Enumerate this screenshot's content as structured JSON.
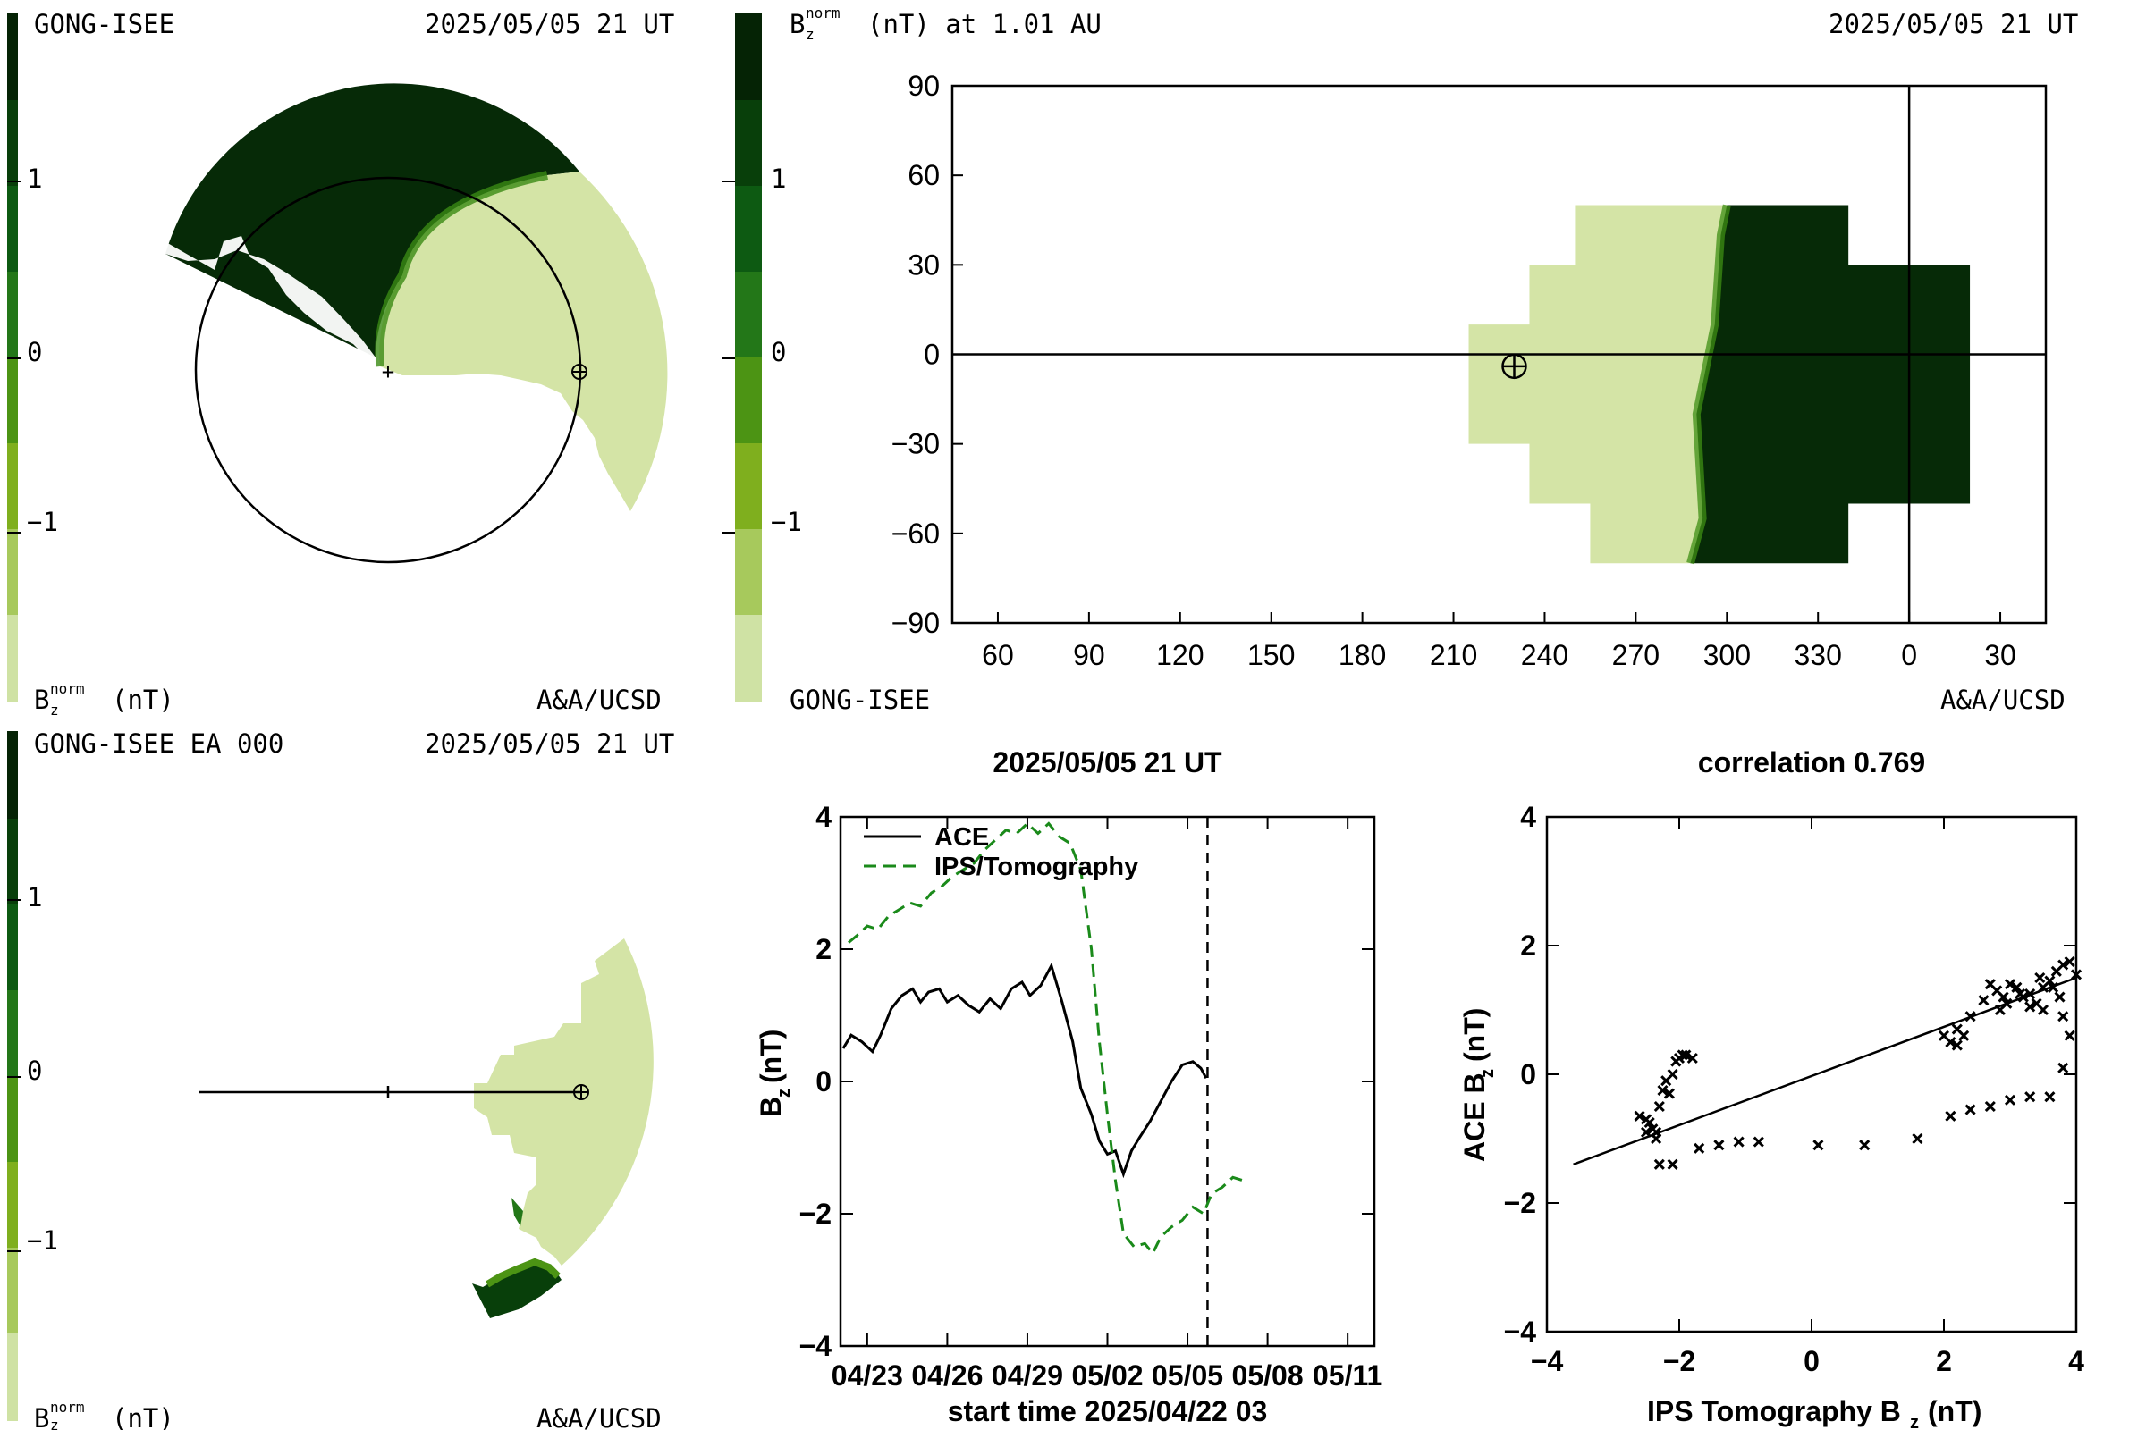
{
  "colors": {
    "scale": [
      "#cfe2a4",
      "#a7c95c",
      "#7faf1e",
      "#4c9414",
      "#237718",
      "#0d5a12",
      "#083f0a",
      "#052305"
    ],
    "light_fill": "#d4e4a6",
    "dark_fill": "#062a07",
    "ace_line": "#000000",
    "ips_line": "#1a8a1a"
  },
  "panels": {
    "top_left": {
      "source": "GONG-ISEE",
      "timestamp": "2025/05/05 21 UT",
      "colorbar_ticks": [
        "1",
        "0",
        "−1"
      ],
      "colorbar_label": "B",
      "colorbar_label_sub": "z",
      "colorbar_label_sup": "norm",
      "colorbar_unit": "(nT)",
      "credit": "A&A/UCSD"
    },
    "top_right": {
      "title": "B",
      "title_sub": "z",
      "title_sup": "norm",
      "title_tail": "(nT) at 1.01 AU",
      "timestamp": "2025/05/05 21 UT",
      "colorbar_ticks": [
        "1",
        "0",
        "−1"
      ],
      "source": "GONG-ISEE",
      "credit": "A&A/UCSD"
    },
    "bottom_left": {
      "source": "GONG-ISEE EA 000",
      "timestamp": "2025/05/05 21 UT",
      "colorbar_ticks": [
        "1",
        "0",
        "−1"
      ],
      "colorbar_label": "B",
      "colorbar_label_sub": "z",
      "colorbar_label_sup": "norm",
      "colorbar_unit": "(nT)",
      "credit": "A&A/UCSD"
    }
  },
  "chart_data": [
    {
      "type": "heatmap",
      "name": "synoptic-map",
      "xticks": [
        "60",
        "90",
        "120",
        "150",
        "180",
        "210",
        "240",
        "270",
        "300",
        "330",
        "0",
        "30"
      ],
      "yticks": [
        "90",
        "60",
        "30",
        "0",
        "−30",
        "−60",
        "−90"
      ],
      "xlim": [
        45,
        405
      ],
      "ylim": [
        -90,
        90
      ],
      "earth": {
        "x": 230,
        "y": -4
      },
      "regions": {
        "light": [
          [
            215,
            10
          ],
          [
            215,
            -30
          ],
          [
            235,
            -30
          ],
          [
            235,
            -50
          ],
          [
            255,
            -50
          ],
          [
            255,
            -70
          ],
          [
            288,
            -70
          ],
          [
            292,
            -55
          ],
          [
            290,
            -20
          ],
          [
            296,
            10
          ],
          [
            298,
            40
          ],
          [
            300,
            50
          ],
          [
            250,
            50
          ],
          [
            250,
            30
          ],
          [
            235,
            30
          ],
          [
            235,
            10
          ]
        ],
        "dark": [
          [
            300,
            50
          ],
          [
            298,
            40
          ],
          [
            296,
            10
          ],
          [
            290,
            -20
          ],
          [
            292,
            -55
          ],
          [
            288,
            -70
          ],
          [
            340,
            -70
          ],
          [
            340,
            -50
          ],
          [
            380,
            -50
          ],
          [
            380,
            30
          ],
          [
            340,
            30
          ],
          [
            340,
            50
          ]
        ]
      }
    },
    {
      "type": "line",
      "name": "time-series",
      "title": "2025/05/05 21 UT",
      "xlabel": "start time 2025/04/22 03",
      "ylabel": "B",
      "ylabel_sub": "z",
      "ylabel_unit": "(nT)",
      "xticks": [
        "04/23",
        "04/26",
        "04/29",
        "05/02",
        "05/05",
        "05/08",
        "05/11"
      ],
      "xtick_days": [
        1,
        4,
        7,
        10,
        13,
        16,
        19
      ],
      "yticks": [
        "4",
        "2",
        "0",
        "−2",
        "−4"
      ],
      "xlim": [
        0,
        20
      ],
      "ylim": [
        -4,
        4
      ],
      "current_day": 13.75,
      "series": [
        {
          "name": "ACE",
          "style": "solid",
          "points": [
            [
              0.1,
              0.5
            ],
            [
              0.4,
              0.7
            ],
            [
              0.8,
              0.6
            ],
            [
              1.2,
              0.45
            ],
            [
              1.5,
              0.7
            ],
            [
              1.9,
              1.1
            ],
            [
              2.3,
              1.3
            ],
            [
              2.7,
              1.4
            ],
            [
              3.0,
              1.2
            ],
            [
              3.3,
              1.35
            ],
            [
              3.7,
              1.4
            ],
            [
              4.0,
              1.2
            ],
            [
              4.4,
              1.3
            ],
            [
              4.8,
              1.15
            ],
            [
              5.2,
              1.05
            ],
            [
              5.6,
              1.25
            ],
            [
              6.0,
              1.1
            ],
            [
              6.4,
              1.4
            ],
            [
              6.8,
              1.5
            ],
            [
              7.1,
              1.3
            ],
            [
              7.5,
              1.45
            ],
            [
              7.9,
              1.75
            ],
            [
              8.3,
              1.2
            ],
            [
              8.7,
              0.6
            ],
            [
              9.0,
              -0.1
            ],
            [
              9.4,
              -0.5
            ],
            [
              9.7,
              -0.9
            ],
            [
              10.0,
              -1.1
            ],
            [
              10.3,
              -1.05
            ],
            [
              10.6,
              -1.4
            ],
            [
              10.9,
              -1.05
            ],
            [
              11.2,
              -0.85
            ],
            [
              11.6,
              -0.6
            ],
            [
              12.0,
              -0.3
            ],
            [
              12.4,
              0.0
            ],
            [
              12.8,
              0.25
            ],
            [
              13.2,
              0.3
            ],
            [
              13.5,
              0.2
            ],
            [
              13.7,
              0.05
            ]
          ]
        },
        {
          "name": "IPS/Tomography",
          "style": "dashed",
          "points": [
            [
              0.3,
              2.1
            ],
            [
              0.6,
              2.2
            ],
            [
              1.0,
              2.35
            ],
            [
              1.4,
              2.3
            ],
            [
              1.8,
              2.5
            ],
            [
              2.2,
              2.6
            ],
            [
              2.6,
              2.7
            ],
            [
              3.0,
              2.65
            ],
            [
              3.4,
              2.85
            ],
            [
              3.8,
              2.95
            ],
            [
              4.2,
              3.1
            ],
            [
              4.6,
              3.2
            ],
            [
              5.0,
              3.3
            ],
            [
              5.4,
              3.5
            ],
            [
              5.8,
              3.65
            ],
            [
              6.2,
              3.8
            ],
            [
              6.6,
              3.75
            ],
            [
              7.0,
              3.9
            ],
            [
              7.4,
              3.75
            ],
            [
              7.8,
              3.9
            ],
            [
              8.2,
              3.7
            ],
            [
              8.6,
              3.6
            ],
            [
              9.0,
              3.2
            ],
            [
              9.4,
              2.0
            ],
            [
              9.7,
              0.6
            ],
            [
              10.0,
              -0.5
            ],
            [
              10.3,
              -1.5
            ],
            [
              10.6,
              -2.3
            ],
            [
              11.0,
              -2.5
            ],
            [
              11.4,
              -2.45
            ],
            [
              11.7,
              -2.6
            ],
            [
              12.0,
              -2.35
            ],
            [
              12.4,
              -2.2
            ],
            [
              12.8,
              -2.1
            ],
            [
              13.2,
              -1.9
            ],
            [
              13.6,
              -2.0
            ],
            [
              13.9,
              -1.7
            ],
            [
              14.3,
              -1.6
            ],
            [
              14.7,
              -1.45
            ],
            [
              15.1,
              -1.5
            ]
          ]
        }
      ],
      "legend": [
        "ACE",
        "IPS/Tomography"
      ],
      "legend_position": "top-left"
    },
    {
      "type": "scatter",
      "name": "correlation-scatter",
      "title": "correlation 0.769",
      "xlabel": "IPS Tomography B",
      "xlabel_sub": "z",
      "xlabel_unit": "(nT)",
      "ylabel": "ACE B",
      "ylabel_sub": "z",
      "ylabel_unit": "(nT)",
      "xticks": [
        "−4",
        "−2",
        "0",
        "2",
        "4"
      ],
      "yticks": [
        "4",
        "2",
        "0",
        "−2",
        "−4"
      ],
      "xlim": [
        -4,
        4
      ],
      "ylim": [
        -4,
        4
      ],
      "fit": [
        [
          -3.6,
          -1.4
        ],
        [
          4.0,
          1.5
        ]
      ],
      "points": [
        [
          -2.5,
          -0.7
        ],
        [
          -2.45,
          -0.75
        ],
        [
          -2.4,
          -0.85
        ],
        [
          -2.35,
          -0.9
        ],
        [
          -2.3,
          -0.5
        ],
        [
          -2.25,
          -0.25
        ],
        [
          -2.2,
          -0.1
        ],
        [
          -2.15,
          -0.3
        ],
        [
          -2.1,
          0.0
        ],
        [
          -2.05,
          0.2
        ],
        [
          -2.0,
          0.25
        ],
        [
          -1.95,
          0.3
        ],
        [
          -1.9,
          0.3
        ],
        [
          -1.8,
          0.25
        ],
        [
          -2.6,
          -0.65
        ],
        [
          -2.5,
          -0.9
        ],
        [
          -2.35,
          -1.0
        ],
        [
          -2.3,
          -1.4
        ],
        [
          -2.1,
          -1.4
        ],
        [
          -1.7,
          -1.15
        ],
        [
          -1.4,
          -1.1
        ],
        [
          -1.1,
          -1.05
        ],
        [
          -0.8,
          -1.05
        ],
        [
          0.1,
          -1.1
        ],
        [
          0.8,
          -1.1
        ],
        [
          1.6,
          -1.0
        ],
        [
          2.1,
          -0.65
        ],
        [
          2.4,
          -0.55
        ],
        [
          2.7,
          -0.5
        ],
        [
          3.0,
          -0.4
        ],
        [
          3.3,
          -0.35
        ],
        [
          3.6,
          -0.35
        ],
        [
          3.8,
          0.1
        ],
        [
          2.0,
          0.6
        ],
        [
          2.1,
          0.5
        ],
        [
          2.2,
          0.7
        ],
        [
          2.3,
          0.6
        ],
        [
          2.2,
          0.45
        ],
        [
          2.4,
          0.9
        ],
        [
          2.6,
          1.15
        ],
        [
          2.7,
          1.4
        ],
        [
          2.8,
          1.3
        ],
        [
          2.9,
          1.2
        ],
        [
          3.0,
          1.4
        ],
        [
          3.1,
          1.35
        ],
        [
          3.2,
          1.2
        ],
        [
          3.3,
          1.05
        ],
        [
          3.4,
          1.1
        ],
        [
          3.5,
          1.35
        ],
        [
          3.6,
          1.45
        ],
        [
          3.7,
          1.6
        ],
        [
          3.8,
          1.7
        ],
        [
          3.9,
          1.75
        ],
        [
          4.0,
          1.55
        ],
        [
          3.75,
          1.2
        ],
        [
          3.8,
          0.9
        ],
        [
          3.9,
          0.6
        ],
        [
          3.5,
          1.0
        ],
        [
          3.3,
          1.25
        ],
        [
          2.85,
          1.0
        ],
        [
          2.95,
          1.1
        ],
        [
          3.15,
          1.25
        ],
        [
          3.45,
          1.5
        ],
        [
          3.65,
          1.35
        ]
      ]
    }
  ]
}
